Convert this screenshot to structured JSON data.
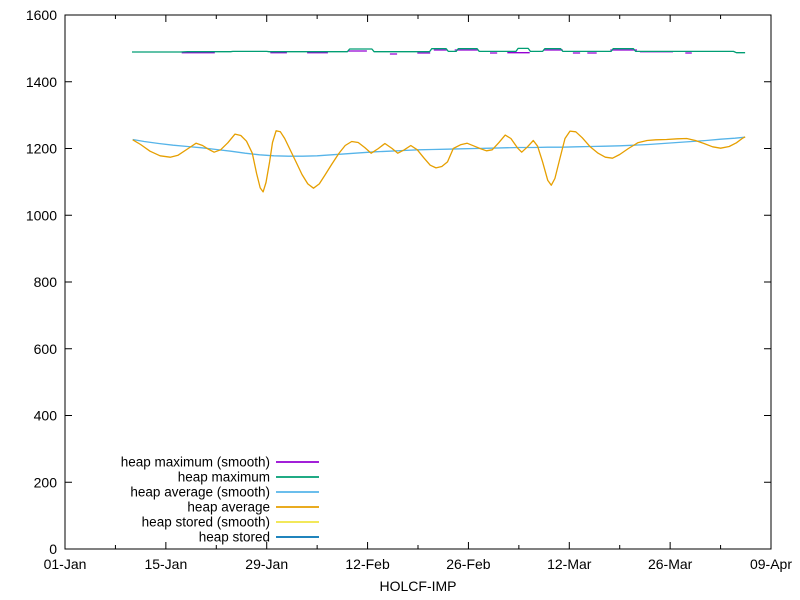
{
  "chart_data": {
    "type": "line",
    "title": "",
    "xlabel": "HOLCF-IMP",
    "grid": false,
    "background_color": "#ffffff",
    "axis_color": "#000000",
    "x_axis": {
      "tick_labels": [
        "01-Jan",
        "15-Jan",
        "29-Jan",
        "12-Feb",
        "26-Feb",
        "12-Mar",
        "26-Mar",
        "09-Apr"
      ],
      "tick_days": [
        0,
        14,
        28,
        42,
        56,
        70,
        84,
        98
      ],
      "minor_tick_days": [
        7,
        21,
        35,
        49,
        63,
        77,
        91
      ],
      "range_days": [
        0,
        98
      ]
    },
    "y_axis": {
      "tick_labels": [
        "0",
        "200",
        "400",
        "600",
        "800",
        "1000",
        "1200",
        "1400",
        "1600"
      ],
      "ticks": [
        0,
        200,
        400,
        600,
        800,
        1000,
        1200,
        1400,
        1600
      ],
      "range": [
        0,
        1600
      ]
    },
    "legend": {
      "position": "bottom-left",
      "entries": [
        {
          "label": "heap maximum (smooth)",
          "color": "#9400d3"
        },
        {
          "label": "heap maximum",
          "color": "#009e73"
        },
        {
          "label": "heap average (smooth)",
          "color": "#56b4e9"
        },
        {
          "label": "heap average",
          "color": "#e69f00"
        },
        {
          "label": "heap stored (smooth)",
          "color": "#f0e442"
        },
        {
          "label": "heap stored",
          "color": "#0072b2"
        }
      ]
    },
    "series": [
      {
        "name": "heap maximum (smooth)",
        "color": "#9400d3",
        "visible_in_plot": true,
        "points": [
          [
            16.2,
            1487
          ],
          [
            20.8,
            1487
          ],
          null,
          [
            28.5,
            1487
          ],
          [
            30.8,
            1487
          ],
          null,
          [
            33.6,
            1487
          ],
          [
            36.5,
            1487
          ],
          null,
          [
            39.3,
            1492
          ],
          [
            41.9,
            1492
          ],
          null,
          [
            45.1,
            1483
          ],
          [
            46.1,
            1483
          ],
          null,
          [
            48.9,
            1486
          ],
          [
            50.7,
            1486
          ],
          null,
          [
            51.2,
            1495
          ],
          [
            53.0,
            1495
          ],
          null,
          [
            54.1,
            1495
          ],
          [
            57.3,
            1495
          ],
          null,
          [
            59.0,
            1486
          ],
          [
            60.0,
            1486
          ],
          null,
          [
            61.4,
            1487
          ],
          [
            64.5,
            1487
          ],
          null,
          [
            66.4,
            1495
          ],
          [
            69.1,
            1495
          ],
          null,
          [
            70.5,
            1486
          ],
          [
            71.5,
            1486
          ],
          null,
          [
            72.5,
            1486
          ],
          [
            73.8,
            1486
          ],
          null,
          [
            75.7,
            1495
          ],
          [
            79.4,
            1495
          ],
          null,
          [
            79.8,
            1490
          ],
          [
            84.4,
            1490
          ],
          null,
          [
            86.1,
            1486
          ],
          [
            87.0,
            1486
          ]
        ]
      },
      {
        "name": "heap maximum",
        "color": "#009e73",
        "visible_in_plot": true,
        "points": [
          [
            9.3,
            1489
          ],
          [
            16,
            1489
          ],
          [
            17,
            1490
          ],
          [
            23,
            1490
          ],
          [
            23.3,
            1491
          ],
          [
            28,
            1491
          ],
          [
            28.3,
            1490
          ],
          [
            39.2,
            1490
          ],
          [
            39.5,
            1498
          ],
          [
            42.6,
            1498
          ],
          [
            42.9,
            1490
          ],
          [
            50.6,
            1490
          ],
          [
            50.9,
            1499
          ],
          [
            52.9,
            1499
          ],
          [
            53.2,
            1491
          ],
          [
            54.3,
            1491
          ],
          [
            54.6,
            1499
          ],
          [
            57.2,
            1499
          ],
          [
            57.5,
            1491
          ],
          [
            62.6,
            1491
          ],
          [
            62.9,
            1500
          ],
          [
            64.3,
            1500
          ],
          [
            64.6,
            1491
          ],
          [
            66.3,
            1491
          ],
          [
            66.6,
            1499
          ],
          [
            68.8,
            1499
          ],
          [
            69.1,
            1491
          ],
          [
            75.8,
            1491
          ],
          [
            76.1,
            1499
          ],
          [
            78.9,
            1499
          ],
          [
            79.2,
            1491
          ],
          [
            92.8,
            1491
          ],
          [
            93.2,
            1487
          ],
          [
            94.4,
            1487
          ]
        ]
      },
      {
        "name": "heap average (smooth)",
        "color": "#56b4e9",
        "visible_in_plot": true,
        "points": [
          [
            9.4,
            1227
          ],
          [
            11,
            1221
          ],
          [
            13,
            1215
          ],
          [
            15,
            1210
          ],
          [
            17,
            1206
          ],
          [
            19,
            1202
          ],
          [
            21,
            1197
          ],
          [
            23,
            1192
          ],
          [
            25,
            1186
          ],
          [
            27,
            1181
          ],
          [
            29,
            1178
          ],
          [
            31,
            1177
          ],
          [
            33,
            1177
          ],
          [
            35,
            1178
          ],
          [
            37,
            1181
          ],
          [
            39,
            1184
          ],
          [
            41,
            1187
          ],
          [
            43,
            1190
          ],
          [
            45,
            1192
          ],
          [
            47,
            1194
          ],
          [
            49,
            1196
          ],
          [
            51,
            1197
          ],
          [
            53,
            1198
          ],
          [
            55,
            1199
          ],
          [
            57,
            1200
          ],
          [
            59,
            1201
          ],
          [
            61,
            1202
          ],
          [
            63,
            1203
          ],
          [
            65,
            1203
          ],
          [
            67,
            1204
          ],
          [
            69,
            1204
          ],
          [
            71,
            1205
          ],
          [
            73,
            1206
          ],
          [
            75,
            1207
          ],
          [
            77,
            1208
          ],
          [
            79,
            1210
          ],
          [
            81,
            1212
          ],
          [
            83,
            1215
          ],
          [
            85,
            1218
          ],
          [
            87,
            1221
          ],
          [
            89,
            1224
          ],
          [
            91,
            1228
          ],
          [
            93,
            1231
          ],
          [
            94.4,
            1234
          ]
        ]
      },
      {
        "name": "heap average",
        "color": "#e69f00",
        "visible_in_plot": true,
        "points": [
          [
            9.4,
            1226
          ],
          [
            10.5,
            1212
          ],
          [
            11.8,
            1192
          ],
          [
            13.2,
            1178
          ],
          [
            14.6,
            1174
          ],
          [
            15.7,
            1180
          ],
          [
            17.1,
            1200
          ],
          [
            18.2,
            1216
          ],
          [
            19.1,
            1209
          ],
          [
            19.9,
            1198
          ],
          [
            20.7,
            1189
          ],
          [
            21.6,
            1196
          ],
          [
            22.6,
            1217
          ],
          [
            23.6,
            1243
          ],
          [
            24.4,
            1239
          ],
          [
            25.2,
            1222
          ],
          [
            26.0,
            1186
          ],
          [
            26.6,
            1125
          ],
          [
            27.1,
            1082
          ],
          [
            27.5,
            1070
          ],
          [
            27.9,
            1098
          ],
          [
            28.4,
            1160
          ],
          [
            28.8,
            1218
          ],
          [
            29.3,
            1253
          ],
          [
            29.9,
            1250
          ],
          [
            30.5,
            1230
          ],
          [
            31.3,
            1194
          ],
          [
            32.1,
            1158
          ],
          [
            32.9,
            1122
          ],
          [
            33.7,
            1094
          ],
          [
            34.5,
            1081
          ],
          [
            35.3,
            1094
          ],
          [
            36.1,
            1121
          ],
          [
            37.0,
            1152
          ],
          [
            38.0,
            1185
          ],
          [
            38.9,
            1209
          ],
          [
            39.8,
            1221
          ],
          [
            40.7,
            1218
          ],
          [
            41.6,
            1203
          ],
          [
            42.5,
            1186
          ],
          [
            43.5,
            1200
          ],
          [
            44.4,
            1215
          ],
          [
            45.4,
            1200
          ],
          [
            46.2,
            1186
          ],
          [
            47.1,
            1196
          ],
          [
            48.0,
            1209
          ],
          [
            48.9,
            1196
          ],
          [
            49.8,
            1172
          ],
          [
            50.7,
            1150
          ],
          [
            51.5,
            1142
          ],
          [
            52.3,
            1146
          ],
          [
            53.1,
            1160
          ],
          [
            53.9,
            1200
          ],
          [
            54.9,
            1211
          ],
          [
            55.8,
            1216
          ],
          [
            56.7,
            1208
          ],
          [
            57.6,
            1200
          ],
          [
            58.5,
            1193
          ],
          [
            59.3,
            1196
          ],
          [
            60.2,
            1217
          ],
          [
            61.1,
            1240
          ],
          [
            61.9,
            1230
          ],
          [
            62.8,
            1202
          ],
          [
            63.4,
            1189
          ],
          [
            64.2,
            1205
          ],
          [
            65.0,
            1224
          ],
          [
            65.6,
            1207
          ],
          [
            66.3,
            1160
          ],
          [
            67.0,
            1105
          ],
          [
            67.5,
            1090
          ],
          [
            68.0,
            1110
          ],
          [
            68.7,
            1170
          ],
          [
            69.4,
            1230
          ],
          [
            70.1,
            1252
          ],
          [
            70.9,
            1250
          ],
          [
            71.8,
            1232
          ],
          [
            72.9,
            1205
          ],
          [
            74.0,
            1186
          ],
          [
            75.0,
            1174
          ],
          [
            76.0,
            1171
          ],
          [
            77.0,
            1182
          ],
          [
            78.2,
            1200
          ],
          [
            79.5,
            1217
          ],
          [
            80.8,
            1224
          ],
          [
            82.0,
            1226
          ],
          [
            83.5,
            1227
          ],
          [
            85.0,
            1229
          ],
          [
            86.3,
            1230
          ],
          [
            87.5,
            1224
          ],
          [
            88.7,
            1215
          ],
          [
            89.9,
            1205
          ],
          [
            91.0,
            1201
          ],
          [
            92.2,
            1206
          ],
          [
            93.2,
            1217
          ],
          [
            94.0,
            1230
          ],
          [
            94.4,
            1235
          ]
        ]
      },
      {
        "name": "heap stored (smooth)",
        "color": "#f0e442",
        "visible_in_plot": false,
        "points": []
      },
      {
        "name": "heap stored",
        "color": "#0072b2",
        "visible_in_plot": false,
        "points": []
      }
    ]
  }
}
